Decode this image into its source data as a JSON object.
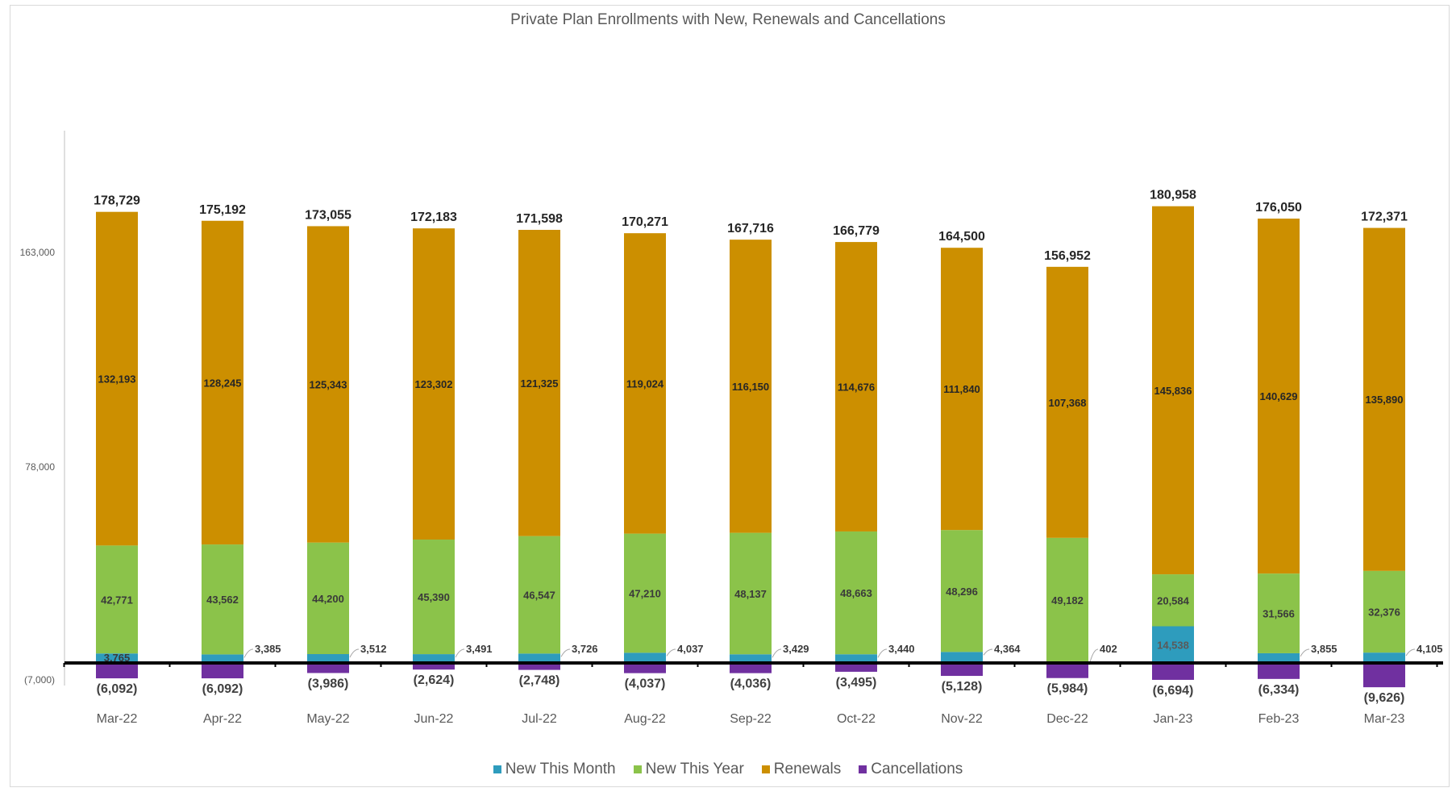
{
  "colors": {
    "new_this_month": "#2e9cbd",
    "new_this_year": "#8bc34a",
    "renewals": "#cc8f00",
    "cancellations": "#7030a0",
    "axis": "#000000",
    "text": "#595959"
  },
  "chart_data": {
    "type": "bar",
    "stacked": true,
    "title": "Private Plan Enrollments with New, Renewals and Cancellations",
    "xlabel": "",
    "ylabel": "",
    "ylim": [
      -7000,
      215000
    ],
    "yticks": [
      "163,000",
      "78,000",
      "(7,000)"
    ],
    "categories": [
      "Mar-22",
      "Apr-22",
      "May-22",
      "Jun-22",
      "Jul-22",
      "Aug-22",
      "Sep-22",
      "Oct-22",
      "Nov-22",
      "Dec-22",
      "Jan-23",
      "Feb-23",
      "Mar-23"
    ],
    "series": [
      {
        "name": "New This Month",
        "values": [
          3765,
          3385,
          3512,
          3491,
          3726,
          4037,
          3429,
          3440,
          4364,
          402,
          14538,
          3855,
          4105
        ],
        "labels": [
          "3,765",
          "3,385",
          "3,512",
          "3,491",
          "3,726",
          "4,037",
          "3,429",
          "3,440",
          "4,364",
          "402",
          "14,538",
          "3,855",
          "4,105"
        ]
      },
      {
        "name": "New This Year",
        "values": [
          42771,
          43562,
          44200,
          45390,
          46547,
          47210,
          48137,
          48663,
          48296,
          49182,
          20584,
          31566,
          32376
        ],
        "labels": [
          "42,771",
          "43,562",
          "44,200",
          "45,390",
          "46,547",
          "47,210",
          "48,137",
          "48,663",
          "48,296",
          "49,182",
          "20,584",
          "31,566",
          "32,376"
        ]
      },
      {
        "name": "Renewals",
        "values": [
          132193,
          128245,
          125343,
          123302,
          121325,
          119024,
          116150,
          114676,
          111840,
          107368,
          145836,
          140629,
          135890
        ],
        "labels": [
          "132,193",
          "128,245",
          "125,343",
          "123,302",
          "121,325",
          "119,024",
          "116,150",
          "114,676",
          "111,840",
          "107,368",
          "145,836",
          "140,629",
          "135,890"
        ]
      },
      {
        "name": "Cancellations",
        "values": [
          -6092,
          -6092,
          -3986,
          -2624,
          -2748,
          -4037,
          -4036,
          -3495,
          -5128,
          -5984,
          -6694,
          -6334,
          -9626
        ],
        "labels": [
          "(6,092)",
          "(6,092)",
          "(3,986)",
          "(2,624)",
          "(2,748)",
          "(4,037)",
          "(4,036)",
          "(3,495)",
          "(5,128)",
          "(5,984)",
          "(6,694)",
          "(6,334)",
          "(9,626)"
        ]
      }
    ],
    "totals": [
      178729,
      175192,
      173055,
      172183,
      171598,
      170271,
      167716,
      166779,
      164500,
      156952,
      180958,
      176050,
      172371
    ],
    "total_labels": [
      "178,729",
      "175,192",
      "173,055",
      "172,183",
      "171,598",
      "170,271",
      "167,716",
      "166,779",
      "164,500",
      "156,952",
      "180,958",
      "176,050",
      "172,371"
    ],
    "legend": "bottom",
    "grid": false
  }
}
